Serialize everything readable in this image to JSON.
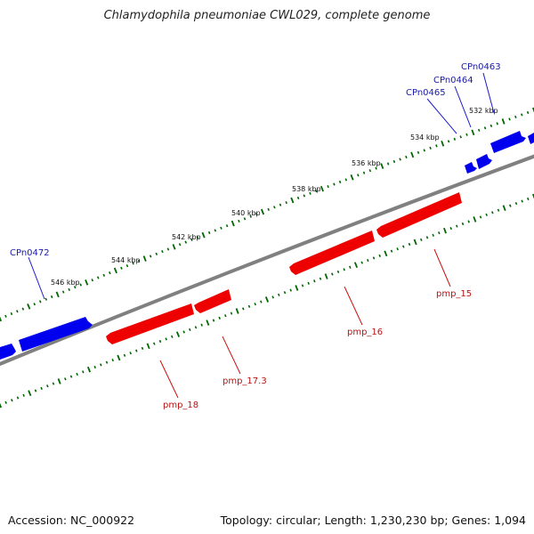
{
  "title": "Chlamydophila pneumoniae CWL029, complete genome",
  "footer": {
    "accession": "Accession: NC_000922",
    "summary": "Topology: circular; Length: 1,230,230 bp; Genes: 1,094"
  },
  "colors": {
    "forward": "#0000ee",
    "reverse": "#ee0000",
    "backbone": "#808080",
    "ticks": "#006600"
  },
  "tick_labels": [
    "532 kbp",
    "534 kbp",
    "536 kbp",
    "538 kbp",
    "540 kbp",
    "542 kbp",
    "544 kbp",
    "546 kbp"
  ],
  "genes_forward": [
    {
      "name": "CPn0463"
    },
    {
      "name": "CPn0464"
    },
    {
      "name": "CPn0465"
    },
    {
      "name": "CPn0472"
    }
  ],
  "genes_reverse": [
    {
      "name": "pmp_15"
    },
    {
      "name": "pmp_16"
    },
    {
      "name": "pmp_17.3"
    },
    {
      "name": "pmp_18"
    }
  ]
}
